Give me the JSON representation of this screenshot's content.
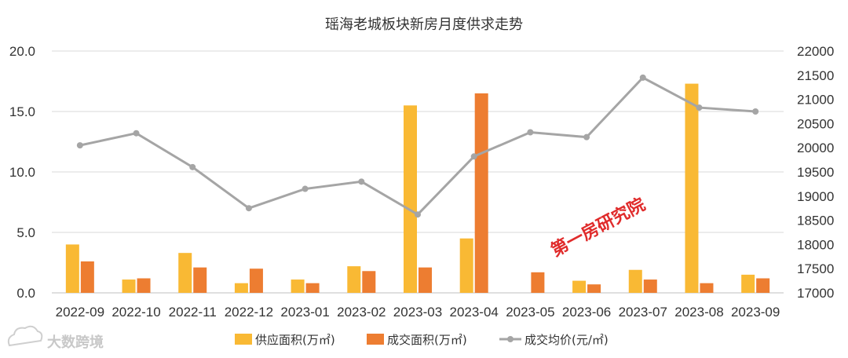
{
  "chart_data": {
    "type": "bar",
    "title": "瑶海老城板块新房月度供求走势",
    "categories": [
      "2022-09",
      "2022-10",
      "2022-11",
      "2022-12",
      "2023-01",
      "2023-02",
      "2023-03",
      "2023-04",
      "2023-05",
      "2023-06",
      "2023-07",
      "2023-08",
      "2023-09"
    ],
    "y_left": {
      "min": 0,
      "max": 20,
      "ticks": [
        "0.0",
        "5.0",
        "10.0",
        "15.0",
        "20.0"
      ]
    },
    "y_right": {
      "min": 17000,
      "max": 22000,
      "ticks": [
        "17000",
        "17500",
        "18000",
        "18500",
        "19000",
        "19500",
        "20000",
        "20500",
        "21000",
        "21500",
        "22000"
      ]
    },
    "grid": "horizontal",
    "legend_position": "bottom",
    "series": [
      {
        "name": "供应面积(万㎡)",
        "type": "bar",
        "axis": "left",
        "color": "#F9B934",
        "values": [
          4.0,
          1.1,
          3.3,
          0.8,
          1.1,
          2.2,
          15.5,
          4.5,
          0,
          1.0,
          1.9,
          17.3,
          1.5
        ]
      },
      {
        "name": "成交面积(万㎡)",
        "type": "bar",
        "axis": "left",
        "color": "#ED7D31",
        "values": [
          2.6,
          1.2,
          2.1,
          2.0,
          0.8,
          1.8,
          2.1,
          16.5,
          1.7,
          0.7,
          1.1,
          0.8,
          1.2
        ]
      },
      {
        "name": "成交均价(元/㎡)",
        "type": "line",
        "axis": "right",
        "color": "#A5A5A5",
        "values": [
          20050,
          20300,
          19600,
          18750,
          19150,
          19300,
          18620,
          19820,
          20320,
          20220,
          21450,
          20830,
          20750
        ]
      }
    ]
  },
  "watermark": {
    "text": "第一房研究院",
    "color": "#E02B2B"
  },
  "logo": {
    "text": "大数跨境",
    "icon": "cloud-logo-icon"
  }
}
